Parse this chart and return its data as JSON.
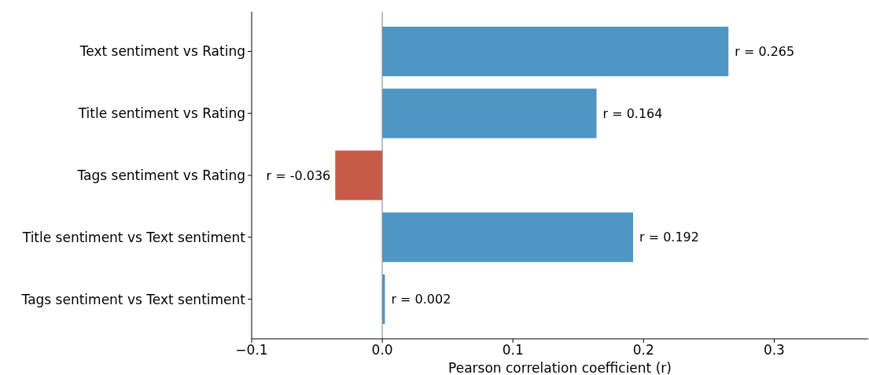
{
  "chart_data": {
    "type": "bar",
    "orientation": "horizontal",
    "xlabel": "Pearson correlation coefficient (r)",
    "categories": [
      "Text sentiment vs Rating",
      "Title sentiment vs Rating",
      "Tags sentiment vs Rating",
      "Title sentiment vs Text sentiment",
      "Tags sentiment vs Text sentiment"
    ],
    "values": [
      0.265,
      0.164,
      -0.036,
      0.192,
      0.002
    ],
    "colors": [
      "#4f96c3",
      "#4f96c3",
      "#c85a48",
      "#4f96c3",
      "#4f96c3"
    ],
    "value_labels": [
      "r = 0.265",
      "r = 0.164",
      "r = -0.036",
      "r = 0.192",
      "r = 0.002"
    ],
    "xlim": [
      -0.1,
      0.372
    ],
    "xticks": [
      {
        "value": -0.1,
        "label": "−0.1"
      },
      {
        "value": 0,
        "label": "0.0"
      },
      0.1,
      0.2,
      0.3
    ],
    "ref_lines": [
      {
        "axis": "x",
        "value": 0,
        "color": "#808080"
      }
    ],
    "grid": false
  }
}
